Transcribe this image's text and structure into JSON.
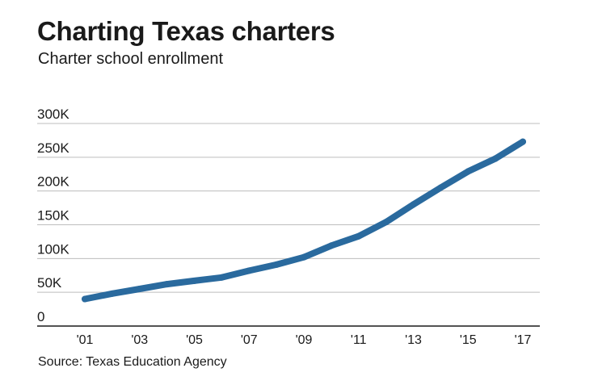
{
  "chart_data": {
    "type": "line",
    "title": "Charting Texas charters",
    "subtitle": "Charter school enrollment",
    "source": "Source: Texas Education Agency",
    "x": [
      2001,
      2002,
      2003,
      2004,
      2005,
      2006,
      2007,
      2008,
      2009,
      2010,
      2011,
      2012,
      2013,
      2014,
      2015,
      2016,
      2017
    ],
    "x_tick_values": [
      2001,
      2003,
      2005,
      2007,
      2009,
      2011,
      2013,
      2015,
      2017
    ],
    "x_tick_labels": [
      "'01",
      "'03",
      "'05",
      "'07",
      "'09",
      "'11",
      "'13",
      "'15",
      "'17"
    ],
    "y_tick_values": [
      0,
      50000,
      100000,
      150000,
      200000,
      250000,
      300000
    ],
    "y_tick_labels": [
      "0",
      "50K",
      "100K",
      "150K",
      "200K",
      "250K",
      "300K"
    ],
    "ylim": [
      0,
      300000
    ],
    "xlim": [
      2001,
      2017
    ],
    "grid": true,
    "series": [
      {
        "values": [
          40000,
          48000,
          55000,
          62000,
          67000,
          72000,
          82000,
          91000,
          102000,
          119000,
          133000,
          154000,
          180000,
          205000,
          229000,
          248000,
          273000
        ]
      }
    ],
    "colors": {
      "line": "#2a6a9e",
      "grid": "#bdbdbd",
      "axis": "#1a1a1a"
    }
  }
}
